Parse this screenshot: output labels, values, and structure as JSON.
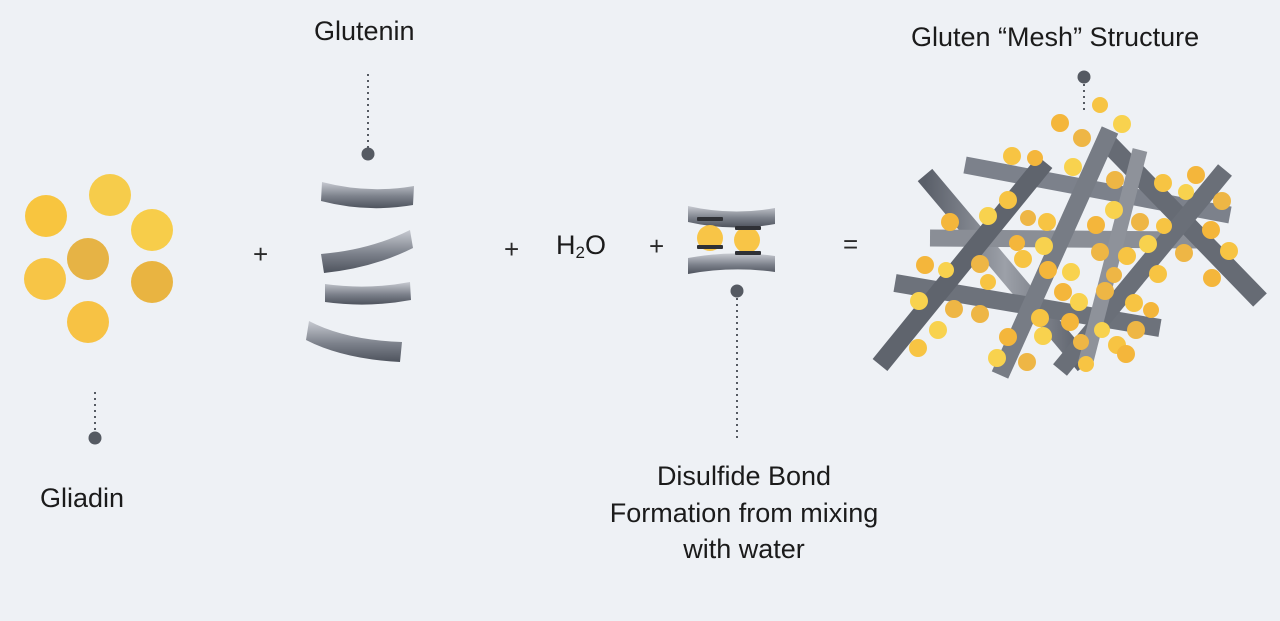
{
  "labels": {
    "glutenin": "Glutenin",
    "gliadin": "Gliadin",
    "gluten_mesh": "Gluten “Mesh” Structure",
    "disulfide": "Disulfide Bond Formation from mixing with water"
  },
  "water": {
    "h": "H",
    "sub": "2",
    "o": "O"
  },
  "operators": {
    "plus": "+",
    "equals": "="
  },
  "colors": {
    "background": "#eef1f5",
    "gliadin_yellow": "#f7c64a",
    "gliadin_dark": "#e8b344",
    "strand_light": "#c7cad1",
    "strand_dark": "#4e535d",
    "leader": "#555a62"
  }
}
